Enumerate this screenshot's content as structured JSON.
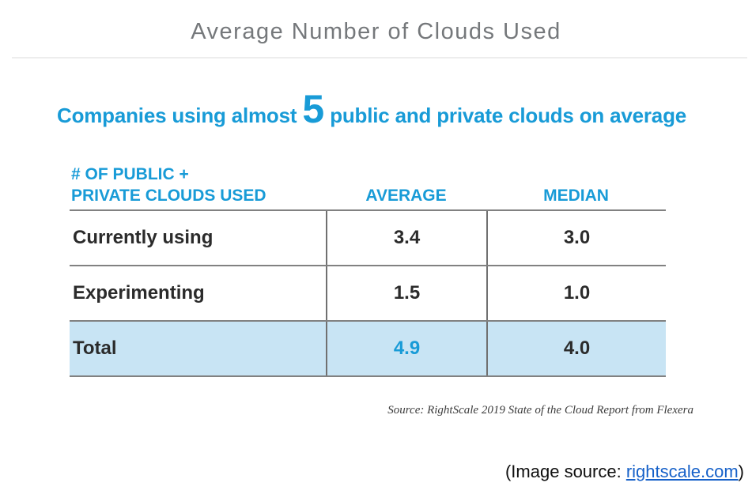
{
  "page": {
    "title": "Average Number of Clouds Used",
    "caption_prefix": "(Image source: ",
    "caption_link_text": "rightscale.com",
    "caption_suffix": ")"
  },
  "headline": {
    "before": "Companies using almost ",
    "big_number": "5",
    "after": " public and private clouds on average"
  },
  "table": {
    "col1_header_line1": "# OF PUBLIC +",
    "col1_header_line2": "PRIVATE CLOUDS USED",
    "col2_header": "AVERAGE",
    "col3_header": "MEDIAN",
    "rows": [
      {
        "label": "Currently using",
        "average": "3.4",
        "median": "3.0"
      },
      {
        "label": "Experimenting",
        "average": "1.5",
        "median": "1.0"
      },
      {
        "label": "Total",
        "average": "4.9",
        "median": "4.0"
      }
    ],
    "source": "Source: RightScale 2019 State of the Cloud Report from Flexera"
  },
  "colors": {
    "accent_blue": "#189bd7",
    "highlight_row_bg": "#c8e4f4",
    "title_gray": "#75787b",
    "grid_line_gray": "#818181",
    "link_blue": "#1661c9",
    "body_text": "#2b2b2b"
  },
  "chart_data": {
    "type": "table",
    "title": "Average Number of Clouds Used",
    "subtitle": "Companies using almost 5 public and private clouds on average",
    "columns": [
      "# OF PUBLIC + PRIVATE CLOUDS USED",
      "AVERAGE",
      "MEDIAN"
    ],
    "rows": [
      [
        "Currently using",
        3.4,
        3.0
      ],
      [
        "Experimenting",
        1.5,
        1.0
      ],
      [
        "Total",
        4.9,
        4.0
      ]
    ],
    "highlighted_row": "Total",
    "source": "Source: RightScale 2019 State of the Cloud Report from Flexera"
  }
}
